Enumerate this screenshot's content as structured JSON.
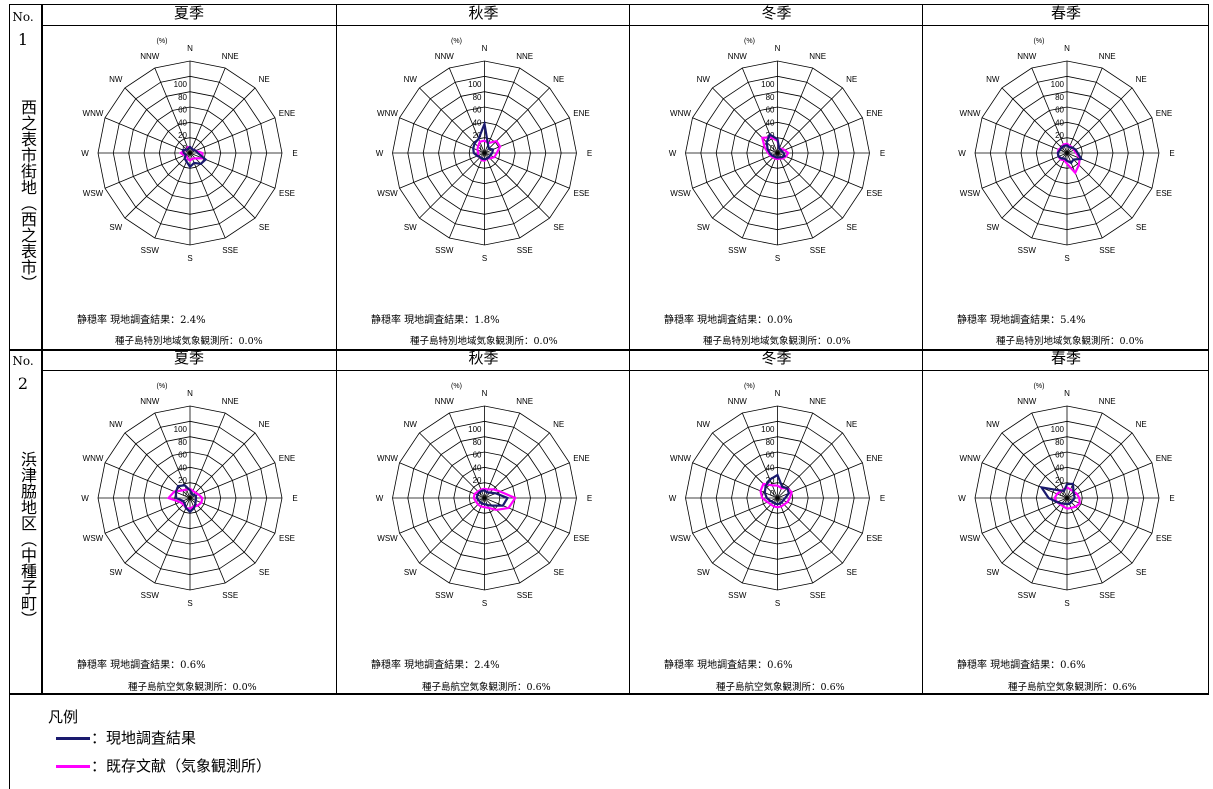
{
  "colors": {
    "survey": "#1a1a6e",
    "reference": "#ff00ff",
    "grid": "#000000"
  },
  "directions": [
    "N",
    "NNE",
    "NE",
    "ENE",
    "E",
    "ESE",
    "SE",
    "SSE",
    "S",
    "SSW",
    "SW",
    "WSW",
    "W",
    "WNW",
    "NW",
    "NNW"
  ],
  "radial_ticks": [
    "0",
    "20",
    "40",
    "60",
    "80",
    "100"
  ],
  "unit_label": "(%)",
  "stations": [
    {
      "no": "No.",
      "num": "1",
      "name": "西之表市街地（西之表市）"
    },
    {
      "no": "No.",
      "num": "2",
      "name": "浜津脇地区（中種子町）"
    }
  ],
  "chart_data": [
    {
      "type": "radar",
      "station": "1",
      "season": "夏季",
      "survey": [
        8,
        6,
        6,
        8,
        10,
        22,
        20,
        14,
        18,
        12,
        10,
        6,
        8,
        10,
        6,
        6
      ],
      "reference": [
        8,
        6,
        6,
        8,
        16,
        18,
        10,
        8,
        10,
        8,
        6,
        8,
        12,
        8,
        6,
        8
      ],
      "calm_survey": "静穏率 現地調査結果：2.4%",
      "calm_reference": "種子島特別地域気象観測所：0.0%"
    },
    {
      "type": "radar",
      "station": "1",
      "season": "秋季",
      "survey": [
        38,
        12,
        8,
        12,
        10,
        8,
        8,
        8,
        8,
        8,
        8,
        10,
        14,
        16,
        18,
        20
      ],
      "reference": [
        16,
        14,
        22,
        22,
        16,
        14,
        10,
        8,
        10,
        10,
        8,
        10,
        8,
        10,
        12,
        16
      ],
      "calm_survey": "静穏率 現地調査結果：1.8%",
      "calm_reference": "種子島特別地域気象観測所：0.0%"
    },
    {
      "type": "radar",
      "station": "1",
      "season": "冬季",
      "survey": [
        18,
        6,
        6,
        6,
        8,
        10,
        8,
        6,
        6,
        6,
        6,
        8,
        10,
        14,
        20,
        26
      ],
      "reference": [
        16,
        6,
        8,
        10,
        14,
        12,
        10,
        8,
        8,
        8,
        8,
        10,
        12,
        18,
        28,
        22
      ],
      "calm_survey": "静穏率 現地調査結果：0.0%",
      "calm_reference": "種子島特別地域気象観測所：0.0%"
    },
    {
      "type": "radar",
      "station": "1",
      "season": "春季",
      "survey": [
        10,
        8,
        10,
        12,
        14,
        20,
        12,
        14,
        10,
        8,
        10,
        12,
        12,
        10,
        10,
        10
      ],
      "reference": [
        12,
        10,
        10,
        10,
        12,
        18,
        22,
        28,
        14,
        10,
        12,
        12,
        12,
        12,
        10,
        12
      ],
      "calm_survey": "静穏率 現地調査結果：5.4%",
      "calm_reference": "種子島特別地域気象観測所：0.0%"
    },
    {
      "type": "radar",
      "station": "2",
      "season": "夏季",
      "survey": [
        10,
        6,
        6,
        8,
        8,
        8,
        10,
        14,
        18,
        14,
        10,
        10,
        18,
        20,
        22,
        18
      ],
      "reference": [
        12,
        10,
        10,
        12,
        16,
        16,
        14,
        12,
        14,
        14,
        12,
        14,
        28,
        22,
        14,
        12
      ],
      "calm_survey": "静穏率 現地調査結果：0.6%",
      "calm_reference": "種子島航空気象観測所：0.0%"
    },
    {
      "type": "radar",
      "station": "2",
      "season": "秋季",
      "survey": [
        10,
        8,
        10,
        16,
        30,
        26,
        14,
        10,
        8,
        8,
        8,
        8,
        10,
        10,
        10,
        10
      ],
      "reference": [
        12,
        12,
        16,
        22,
        40,
        34,
        22,
        14,
        12,
        12,
        12,
        12,
        14,
        14,
        12,
        12
      ],
      "calm_survey": "静穏率 現地調査結果：2.4%",
      "calm_reference": "種子島航空気象観測所：0.6%"
    },
    {
      "type": "radar",
      "station": "2",
      "season": "冬季",
      "survey": [
        30,
        16,
        18,
        16,
        10,
        8,
        8,
        8,
        8,
        8,
        8,
        10,
        14,
        18,
        22,
        26
      ],
      "reference": [
        16,
        14,
        18,
        20,
        16,
        14,
        12,
        12,
        12,
        12,
        12,
        14,
        20,
        24,
        26,
        18
      ],
      "calm_survey": "静穏率 現地調査結果：0.6%",
      "calm_reference": "種子島航空気象観測所：0.6%"
    },
    {
      "type": "radar",
      "station": "2",
      "season": "春季",
      "survey": [
        18,
        20,
        12,
        10,
        10,
        8,
        8,
        8,
        8,
        8,
        10,
        14,
        24,
        36,
        14,
        10
      ],
      "reference": [
        14,
        12,
        12,
        14,
        16,
        18,
        16,
        14,
        14,
        12,
        12,
        14,
        16,
        14,
        12,
        12
      ],
      "calm_survey": "静穏率 現地調査結果：0.6%",
      "calm_reference": "種子島航空気象観測所：0.6%"
    }
  ],
  "legend": {
    "title": "凡例",
    "survey_label": "：現地調査結果",
    "reference_label": "：既存文献（気象観測所）"
  }
}
